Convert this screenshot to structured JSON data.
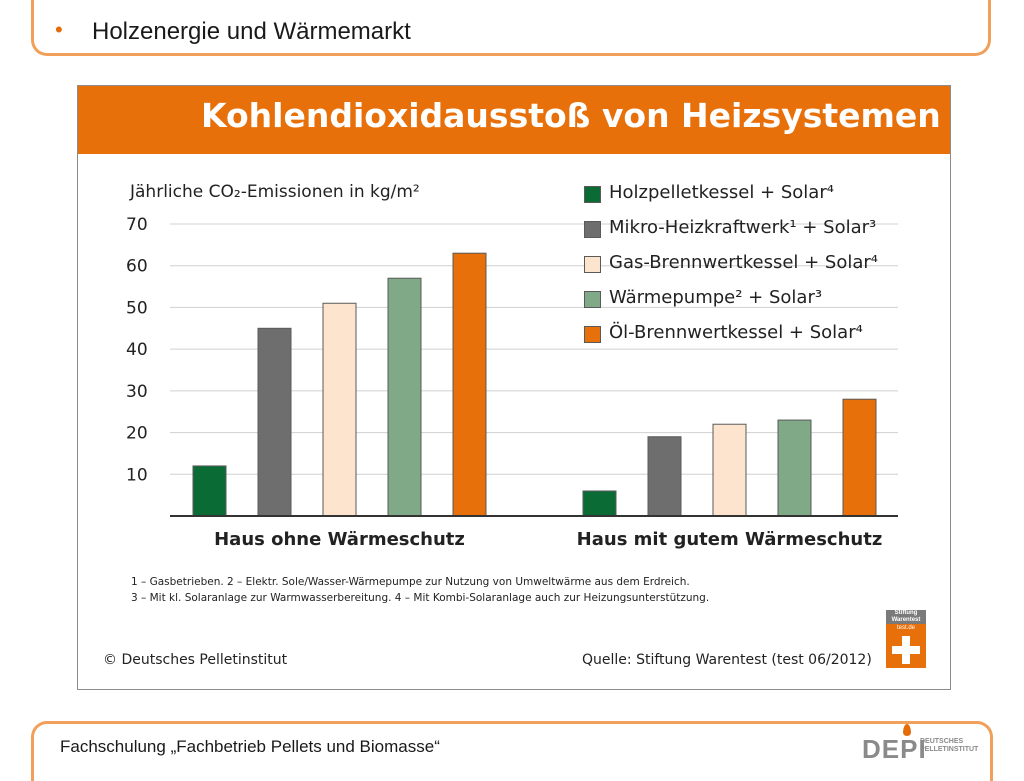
{
  "slide": {
    "title": "Holzenergie und Wärmemarkt",
    "footer": "Fachschulung „Fachbetrieb Pellets und Biomasse“",
    "logo": {
      "word": "DEPI",
      "sub_line1": "DEUTSCHES",
      "sub_line2": "PELLETINSTITUT"
    },
    "accent_color": "#E8700A",
    "frame_color": "#F0A05A"
  },
  "panel": {
    "banner_title": "Kohlendioxidausstoß von Heizsystemen",
    "footnote_line1": "1 – Gasbetrieben. 2 – Elektr. Sole/Wasser-Wärmepumpe zur Nutzung von Umweltwärme aus dem Erdreich.",
    "footnote_line2": "3 – Mit kl. Solaranlage zur Warmwasserbereitung. 4 – Mit Kombi-Solaranlage auch zur Heizungsunterstützung.",
    "copyright": "© Deutsches Pelletinstitut",
    "source": "Quelle: Stiftung Warentest (test 06/2012)",
    "test_logo": {
      "line1": "Stiftung",
      "line2": "Warentest",
      "line3": "test.de"
    }
  },
  "chart_data": {
    "type": "bar",
    "ylabel": "Jährliche CO₂-Emissionen in kg/m²",
    "ylim": [
      0,
      70
    ],
    "yticks": [
      10,
      20,
      30,
      40,
      50,
      60,
      70
    ],
    "grid": true,
    "legend_position": "top-right",
    "categories": [
      "Haus ohne Wärmeschutz",
      "Haus mit gutem Wärmeschutz"
    ],
    "series": [
      {
        "name": "Holzpelletkessel + Solar⁴",
        "color": "#0B6B35",
        "values": [
          12,
          6
        ]
      },
      {
        "name": "Mikro-Heizkraftwerk¹ + Solar³",
        "color": "#6E6E6E",
        "values": [
          45,
          19
        ]
      },
      {
        "name": "Gas-Brennwertkessel + Solar⁴",
        "color": "#FCE4CF",
        "values": [
          51,
          22
        ]
      },
      {
        "name": "Wärmepumpe² + Solar³",
        "color": "#7FA987",
        "values": [
          57,
          23
        ]
      },
      {
        "name": "Öl-Brennwertkessel + Solar⁴",
        "color": "#E8700A",
        "values": [
          63,
          28
        ]
      }
    ]
  }
}
